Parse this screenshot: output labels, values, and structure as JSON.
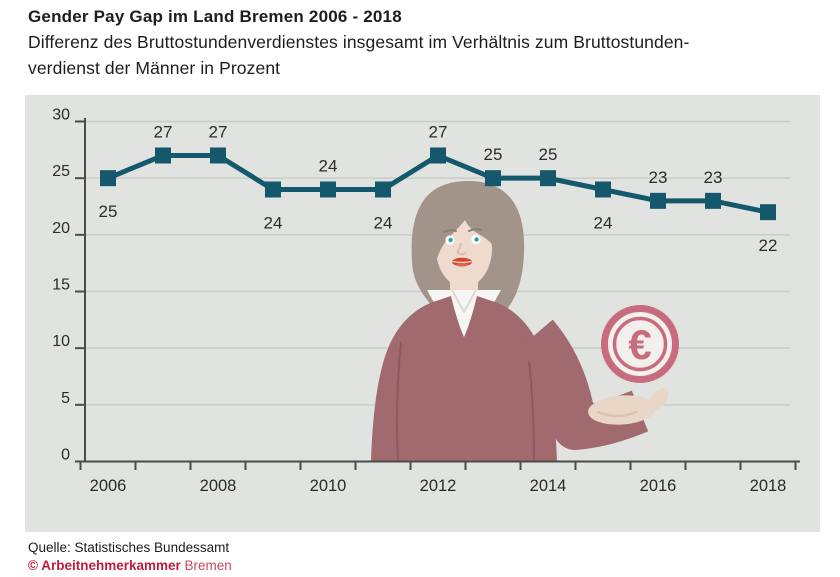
{
  "header": {
    "title": "Gender Pay Gap im Land Bremen 2006 - 2018",
    "subtitle_line1": "Differenz des Bruttostundenverdienstes insgesamt im Verhältnis zum Bruttostunden-",
    "subtitle_line2": "verdienst der Männer in Prozent"
  },
  "chart_data": {
    "type": "line",
    "title": "Gender Pay Gap im Land Bremen 2006 - 2018",
    "categories": [
      2006,
      2007,
      2008,
      2009,
      2010,
      2011,
      2012,
      2013,
      2014,
      2015,
      2016,
      2017,
      2018
    ],
    "values": [
      25,
      27,
      27,
      24,
      24,
      24,
      27,
      25,
      25,
      24,
      23,
      23,
      22
    ],
    "label_positions": [
      "below",
      "above",
      "above",
      "below",
      "above",
      "below",
      "above",
      "above",
      "above",
      "below",
      "above",
      "above",
      "below"
    ],
    "unit": "Prozent",
    "ylim": [
      0,
      30
    ],
    "yticks": [
      0,
      5,
      10,
      15,
      20,
      25,
      30
    ],
    "xtick_labels": [
      "2006",
      "2008",
      "2010",
      "2012",
      "2014",
      "2016",
      "2018"
    ],
    "grid": true,
    "legend": "none",
    "marker": "square"
  },
  "colors": {
    "line": "#15586c",
    "grid": "#c8ccc8",
    "axis": "#4b4b4a",
    "text": "#2b2b2a",
    "panel_bg": "#e1e3e0",
    "accent_red": "#be1e3e",
    "coin_pink": "#c76b7e",
    "sweater": "#a16a6e",
    "hair": "#a29488",
    "skin": "#eedbcd"
  },
  "illustration": {
    "description": "Frau mit Euro-Münze",
    "euro_symbol": "€"
  },
  "footer": {
    "source": "Quelle: Statistisches Bundessamt",
    "copyright": "© Arbeitnehmerkammer",
    "copyright_region": "Bremen"
  }
}
